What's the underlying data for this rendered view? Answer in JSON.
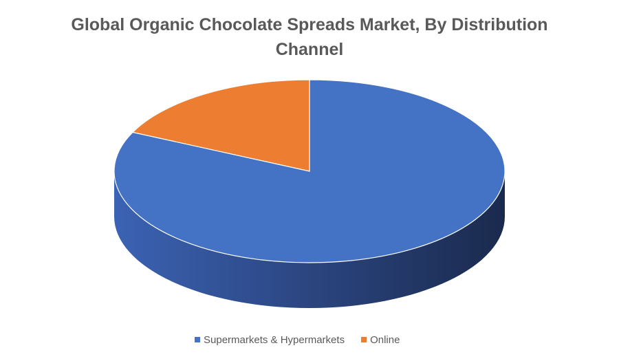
{
  "chart_data": {
    "type": "pie",
    "title": "Global Organic Chocolate Spreads Market, By Distribution Channel",
    "categories": [
      "Supermarkets & Hypermarkets",
      "Online"
    ],
    "values": [
      82,
      18
    ],
    "colors": [
      "#4472c4",
      "#ed7d31"
    ],
    "legend": "bottom"
  }
}
